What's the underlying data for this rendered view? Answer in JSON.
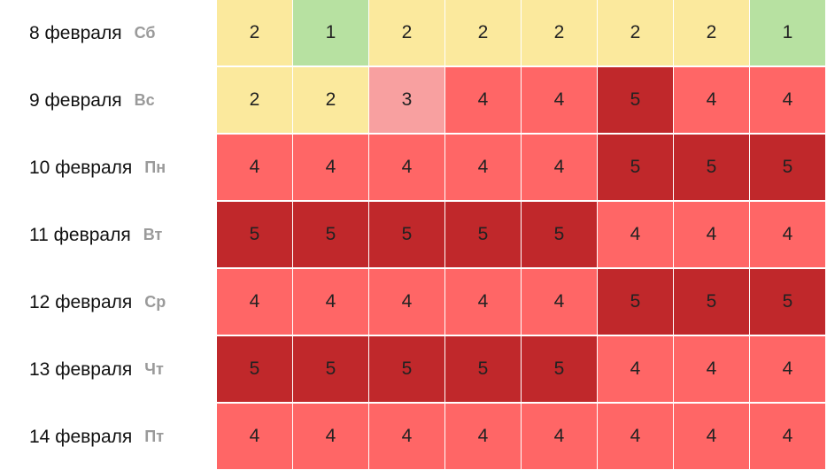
{
  "chart_data": {
    "type": "heatmap",
    "title": "",
    "rows": [
      {
        "date": "8 февраля",
        "dow": "Сб",
        "values": [
          2,
          1,
          2,
          2,
          2,
          2,
          2,
          1
        ]
      },
      {
        "date": "9 февраля",
        "dow": "Вс",
        "values": [
          2,
          2,
          3,
          4,
          4,
          5,
          4,
          4
        ]
      },
      {
        "date": "10 февраля",
        "dow": "Пн",
        "values": [
          4,
          4,
          4,
          4,
          4,
          5,
          5,
          5
        ]
      },
      {
        "date": "11 февраля",
        "dow": "Вт",
        "values": [
          5,
          5,
          5,
          5,
          5,
          4,
          4,
          4
        ]
      },
      {
        "date": "12 февраля",
        "dow": "Ср",
        "values": [
          4,
          4,
          4,
          4,
          4,
          5,
          5,
          5
        ]
      },
      {
        "date": "13 февраля",
        "dow": "Чт",
        "values": [
          5,
          5,
          5,
          5,
          5,
          4,
          4,
          4
        ]
      },
      {
        "date": "14 февраля",
        "dow": "Пт",
        "values": [
          4,
          4,
          4,
          4,
          4,
          4,
          4,
          4
        ]
      }
    ],
    "color_scale": {
      "1": "#b7e1a1",
      "2": "#fbe99d",
      "3": "#f8a0a0",
      "4": "#ff6666",
      "5": "#c0282b"
    }
  }
}
